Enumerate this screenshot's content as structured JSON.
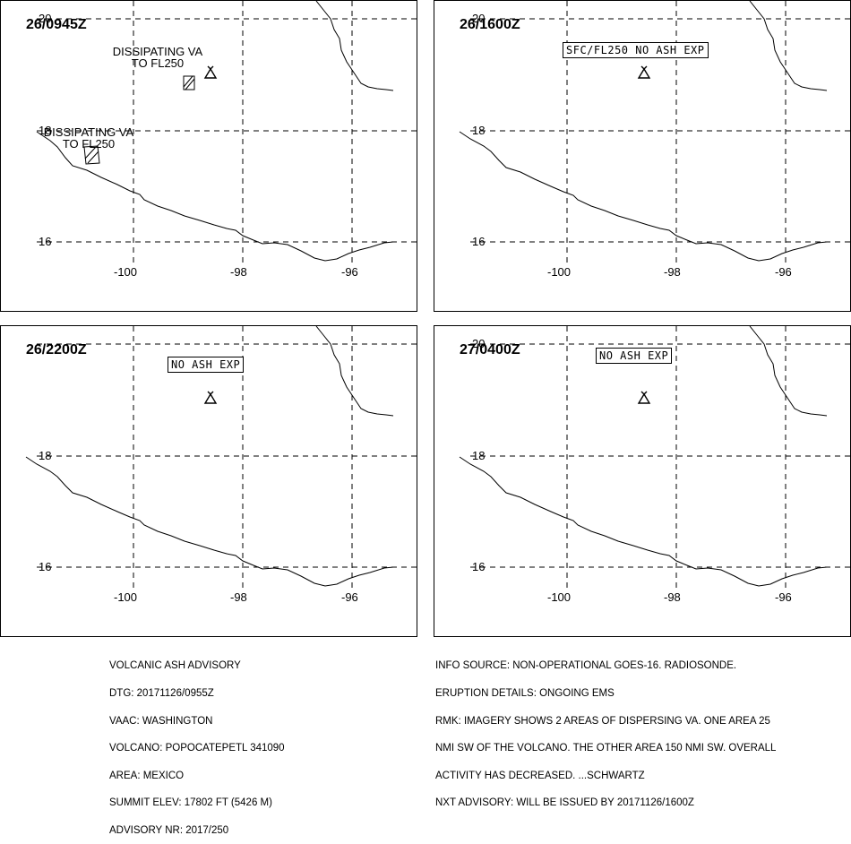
{
  "panels": [
    {
      "time": "26/0945Z",
      "lat_labels": [
        "20",
        "18",
        "16"
      ],
      "lon_labels": [
        "-100",
        "-98",
        "-96"
      ],
      "box_label": "",
      "polygon_labels": [
        {
          "line1": "DISSIPATING VA",
          "line2": "TO FL250"
        },
        {
          "line1": "DISSIPATING VA",
          "line2": "TO FL250"
        }
      ]
    },
    {
      "time": "26/1600Z",
      "lat_labels": [
        "20",
        "18",
        "16"
      ],
      "lon_labels": [
        "-100",
        "-98",
        "-96"
      ],
      "box_label": "SFC/FL250 NO ASH EXP",
      "polygon_labels": []
    },
    {
      "time": "26/2200Z",
      "lat_labels": [
        "20",
        "18",
        "16"
      ],
      "lon_labels": [
        "-100",
        "-98",
        "-96"
      ],
      "box_label": "NO ASH EXP",
      "polygon_labels": []
    },
    {
      "time": "27/0400Z",
      "lat_labels": [
        "20",
        "18",
        "16"
      ],
      "lon_labels": [
        "-100",
        "-98",
        "-96"
      ],
      "box_label": "NO ASH EXP",
      "polygon_labels": []
    }
  ],
  "advisory_left": [
    "VOLCANIC ASH ADVISORY",
    "DTG: 20171126/0955Z",
    "VAAC: WASHINGTON",
    "VOLCANO: POPOCATEPETL 341090",
    "AREA: MEXICO",
    "SUMMIT ELEV: 17802 FT (5426 M)",
    "ADVISORY NR: 2017/250"
  ],
  "advisory_right": [
    "INFO SOURCE: NON-OPERATIONAL GOES-16. RADIOSONDE.",
    "ERUPTION DETAILS: ONGOING EMS",
    "RMK: IMAGERY SHOWS 2 AREAS OF DISPERSING VA. ONE AREA 25",
    "NMI SW OF THE VOLCANO. THE OTHER AREA 150 NMI SW. OVERALL",
    "ACTIVITY HAS DECREASED. ...SCHWARTZ",
    "NXT ADVISORY: WILL BE ISSUED BY 20171126/1600Z"
  ],
  "icons": {
    "volcano": "volcano-icon",
    "ash_area": "hatched-ash-polygon"
  },
  "colors": {
    "line": "#000000",
    "background": "#ffffff"
  }
}
